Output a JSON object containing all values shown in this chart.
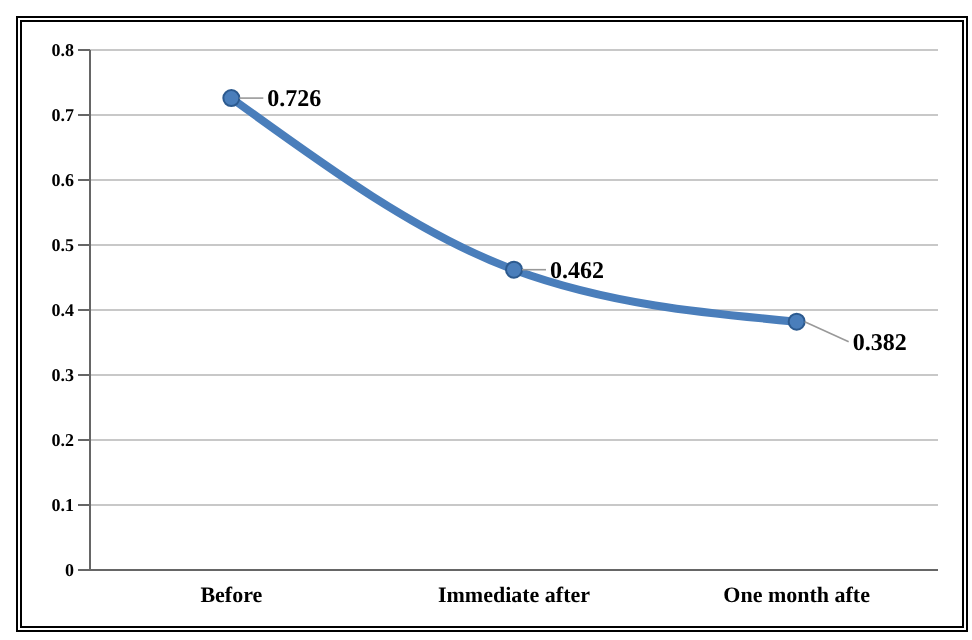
{
  "chart_data": {
    "type": "line",
    "categories": [
      "Before",
      "Immediate after",
      "One month afte"
    ],
    "series": [
      {
        "color": "#4a7ebb",
        "values": [
          0.726,
          0.462,
          0.382
        ]
      }
    ],
    "ylim": [
      0,
      0.8
    ],
    "yticks": [
      0,
      0.1,
      0.2,
      0.3,
      0.4,
      0.5,
      0.6,
      0.7,
      0.8
    ],
    "grid": "y",
    "marker": "circle",
    "line_style": "solid",
    "data_labels": true,
    "legend": false
  }
}
